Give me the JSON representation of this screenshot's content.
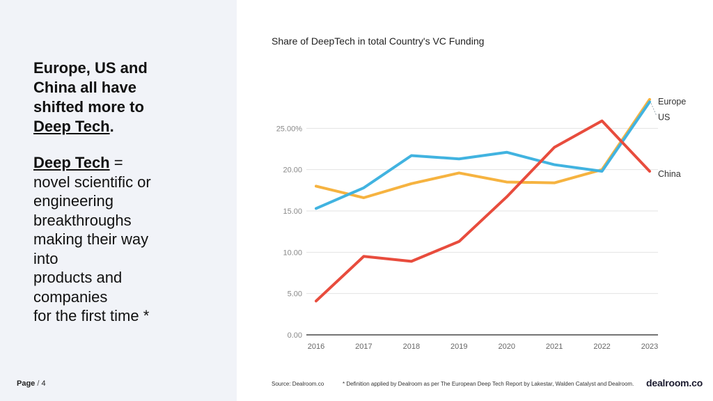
{
  "left": {
    "headline_line1": "Europe, US and",
    "headline_line2": "China all have",
    "headline_line3": "shifted more to",
    "headline_term": "Deep Tech",
    "headline_period": ".",
    "definition_term": "Deep Tech",
    "definition_equals": " =",
    "definition_line1": "novel scientific or",
    "definition_line2": "engineering",
    "definition_line3": "breakthroughs",
    "definition_line4": "making their way",
    "definition_line5": "into",
    "definition_line6": "products and",
    "definition_line7": "companies",
    "definition_line8": "for the first time *"
  },
  "footer": {
    "page_label": "Page",
    "page_sep": " / ",
    "page_number": "4",
    "source": "Source: Dealroom.co",
    "footnote": "* Definition applied by Dealroom as per The European Deep Tech Report by Lakestar, Walden Catalyst and Dealroom.",
    "logo": "dealroom.co"
  },
  "chart_data": {
    "type": "line",
    "title": "Share of DeepTech in total Country's VC Funding",
    "xlabel": "",
    "ylabel": "",
    "x": [
      "2016",
      "2017",
      "2018",
      "2019",
      "2020",
      "2021",
      "2022",
      "2023"
    ],
    "ylim": [
      0,
      30
    ],
    "yticks": [
      0,
      5,
      10,
      15,
      20,
      25
    ],
    "ytick_labels": [
      "0.00",
      "5.00",
      "10.00",
      "15.00",
      "20.00",
      "25.00%"
    ],
    "grid": true,
    "series": [
      {
        "name": "Europe",
        "color": "#f6b340",
        "values": [
          18.0,
          16.6,
          18.3,
          19.6,
          18.5,
          18.4,
          20.0,
          28.5
        ]
      },
      {
        "name": "US",
        "color": "#41b3e0",
        "values": [
          15.3,
          17.8,
          21.7,
          21.3,
          22.1,
          20.6,
          19.8,
          28.2
        ]
      },
      {
        "name": "China",
        "color": "#e84c3d",
        "values": [
          4.1,
          9.5,
          8.9,
          11.3,
          16.7,
          22.7,
          25.9,
          19.8
        ]
      }
    ]
  }
}
